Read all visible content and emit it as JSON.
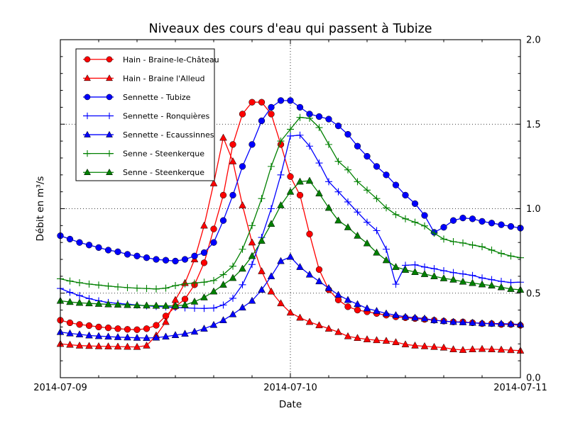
{
  "figure": {
    "background": "#ffffff",
    "axes_edge_color": "#000000",
    "grid_color": "#000000"
  },
  "chart_data": {
    "type": "line",
    "title": "Niveaux des cours d'eau qui passent à Tubize",
    "xlabel": "Date",
    "ylabel": "Débit en m³/s",
    "ylim": [
      0.0,
      2.0
    ],
    "xlim_hours": [
      0,
      48
    ],
    "grid": {
      "style": "dotted",
      "y_values": [
        0.5,
        1.0,
        1.5
      ],
      "x_hours": [
        24
      ]
    },
    "legend_position": "upper-left",
    "x_ticks": [
      {
        "hour": 0,
        "label": "2014-07-09"
      },
      {
        "hour": 24,
        "label": "2014-07-10"
      },
      {
        "hour": 48,
        "label": "2014-07-11"
      }
    ],
    "x_minor_tick_hours": [
      4,
      8,
      12,
      16,
      20,
      28,
      32,
      36,
      40,
      44
    ],
    "y_ticks": [
      {
        "value": 0.0,
        "label": "0.0"
      },
      {
        "value": 0.5,
        "label": "0.5"
      },
      {
        "value": 1.0,
        "label": "1.0"
      },
      {
        "value": 1.5,
        "label": "1.5"
      },
      {
        "value": 2.0,
        "label": "2.0"
      }
    ],
    "y_minor_tick_step": 0.1,
    "x_unit": "hours since 2014-07-09 00:00, hourly samples",
    "series": [
      {
        "name": "Hain - Braine-le-Château",
        "color": "#ff0000",
        "marker": "circle",
        "values": [
          0.34,
          0.325,
          0.315,
          0.308,
          0.3,
          0.295,
          0.29,
          0.286,
          0.284,
          0.29,
          0.31,
          0.365,
          0.42,
          0.465,
          0.55,
          0.68,
          0.88,
          1.08,
          1.38,
          1.56,
          1.63,
          1.63,
          1.56,
          1.38,
          1.19,
          1.08,
          0.85,
          0.64,
          0.52,
          0.46,
          0.42,
          0.4,
          0.39,
          0.38,
          0.37,
          0.36,
          0.355,
          0.35,
          0.345,
          0.34,
          0.335,
          0.33,
          0.33,
          0.325,
          0.32,
          0.32,
          0.315,
          0.315,
          0.31
        ]
      },
      {
        "name": "Hain - Braine l'Alleud",
        "color": "#ff0000",
        "marker": "triangle-up",
        "values": [
          0.2,
          0.195,
          0.19,
          0.188,
          0.186,
          0.185,
          0.184,
          0.183,
          0.182,
          0.19,
          0.25,
          0.33,
          0.46,
          0.56,
          0.7,
          0.9,
          1.15,
          1.42,
          1.28,
          1.02,
          0.8,
          0.63,
          0.51,
          0.44,
          0.385,
          0.355,
          0.33,
          0.31,
          0.29,
          0.27,
          0.245,
          0.235,
          0.227,
          0.222,
          0.218,
          0.21,
          0.197,
          0.19,
          0.186,
          0.182,
          0.178,
          0.168,
          0.164,
          0.168,
          0.17,
          0.168,
          0.166,
          0.163,
          0.16
        ]
      },
      {
        "name": "Sennette - Tubize",
        "color": "#0000ff",
        "marker": "circle",
        "values": [
          0.84,
          0.82,
          0.8,
          0.785,
          0.77,
          0.755,
          0.745,
          0.73,
          0.72,
          0.71,
          0.7,
          0.695,
          0.69,
          0.7,
          0.72,
          0.74,
          0.8,
          0.93,
          1.08,
          1.25,
          1.38,
          1.52,
          1.6,
          1.64,
          1.64,
          1.6,
          1.56,
          1.545,
          1.53,
          1.49,
          1.44,
          1.37,
          1.31,
          1.25,
          1.2,
          1.14,
          1.08,
          1.03,
          0.96,
          0.86,
          0.89,
          0.93,
          0.945,
          0.94,
          0.925,
          0.915,
          0.905,
          0.895,
          0.885
        ]
      },
      {
        "name": "Sennette - Ronquières",
        "color": "#0000ff",
        "marker": "plus",
        "values": [
          0.528,
          0.505,
          0.486,
          0.468,
          0.455,
          0.445,
          0.44,
          0.435,
          0.43,
          0.425,
          0.422,
          0.419,
          0.416,
          0.413,
          0.411,
          0.41,
          0.412,
          0.43,
          0.47,
          0.55,
          0.67,
          0.83,
          1.0,
          1.2,
          1.43,
          1.435,
          1.37,
          1.27,
          1.16,
          1.1,
          1.04,
          0.98,
          0.92,
          0.87,
          0.76,
          0.553,
          0.665,
          0.668,
          0.655,
          0.645,
          0.633,
          0.622,
          0.614,
          0.605,
          0.59,
          0.58,
          0.57,
          0.563,
          0.565
        ]
      },
      {
        "name": "Sennette - Ecaussinnes",
        "color": "#0000ff",
        "marker": "triangle-up",
        "values": [
          0.27,
          0.262,
          0.256,
          0.25,
          0.246,
          0.243,
          0.24,
          0.238,
          0.236,
          0.235,
          0.237,
          0.243,
          0.252,
          0.26,
          0.272,
          0.29,
          0.312,
          0.34,
          0.375,
          0.415,
          0.455,
          0.52,
          0.6,
          0.69,
          0.715,
          0.655,
          0.61,
          0.57,
          0.53,
          0.49,
          0.46,
          0.435,
          0.41,
          0.395,
          0.38,
          0.37,
          0.36,
          0.355,
          0.35,
          0.34,
          0.335,
          0.33,
          0.328,
          0.325,
          0.322,
          0.32,
          0.32,
          0.318,
          0.315
        ]
      },
      {
        "name": "Senne - Steenkerque",
        "color": "#008000",
        "marker": "plus",
        "values": [
          0.585,
          0.572,
          0.562,
          0.554,
          0.548,
          0.542,
          0.537,
          0.533,
          0.53,
          0.528,
          0.525,
          0.53,
          0.545,
          0.555,
          0.56,
          0.565,
          0.575,
          0.61,
          0.66,
          0.76,
          0.9,
          1.06,
          1.25,
          1.4,
          1.47,
          1.54,
          1.535,
          1.48,
          1.38,
          1.28,
          1.23,
          1.16,
          1.11,
          1.06,
          1.005,
          0.965,
          0.94,
          0.92,
          0.898,
          0.855,
          0.82,
          0.805,
          0.797,
          0.785,
          0.775,
          0.755,
          0.735,
          0.72,
          0.71
        ]
      },
      {
        "name": "Senne - Steenkerque",
        "color": "#008000",
        "marker": "triangle-up",
        "values": [
          0.455,
          0.448,
          0.443,
          0.44,
          0.437,
          0.434,
          0.432,
          0.43,
          0.428,
          0.427,
          0.426,
          0.425,
          0.425,
          0.43,
          0.45,
          0.475,
          0.51,
          0.55,
          0.59,
          0.645,
          0.72,
          0.81,
          0.91,
          1.02,
          1.1,
          1.16,
          1.165,
          1.09,
          1.005,
          0.93,
          0.89,
          0.84,
          0.795,
          0.74,
          0.695,
          0.655,
          0.638,
          0.625,
          0.613,
          0.6,
          0.588,
          0.58,
          0.568,
          0.56,
          0.552,
          0.545,
          0.535,
          0.525,
          0.52
        ]
      }
    ]
  }
}
